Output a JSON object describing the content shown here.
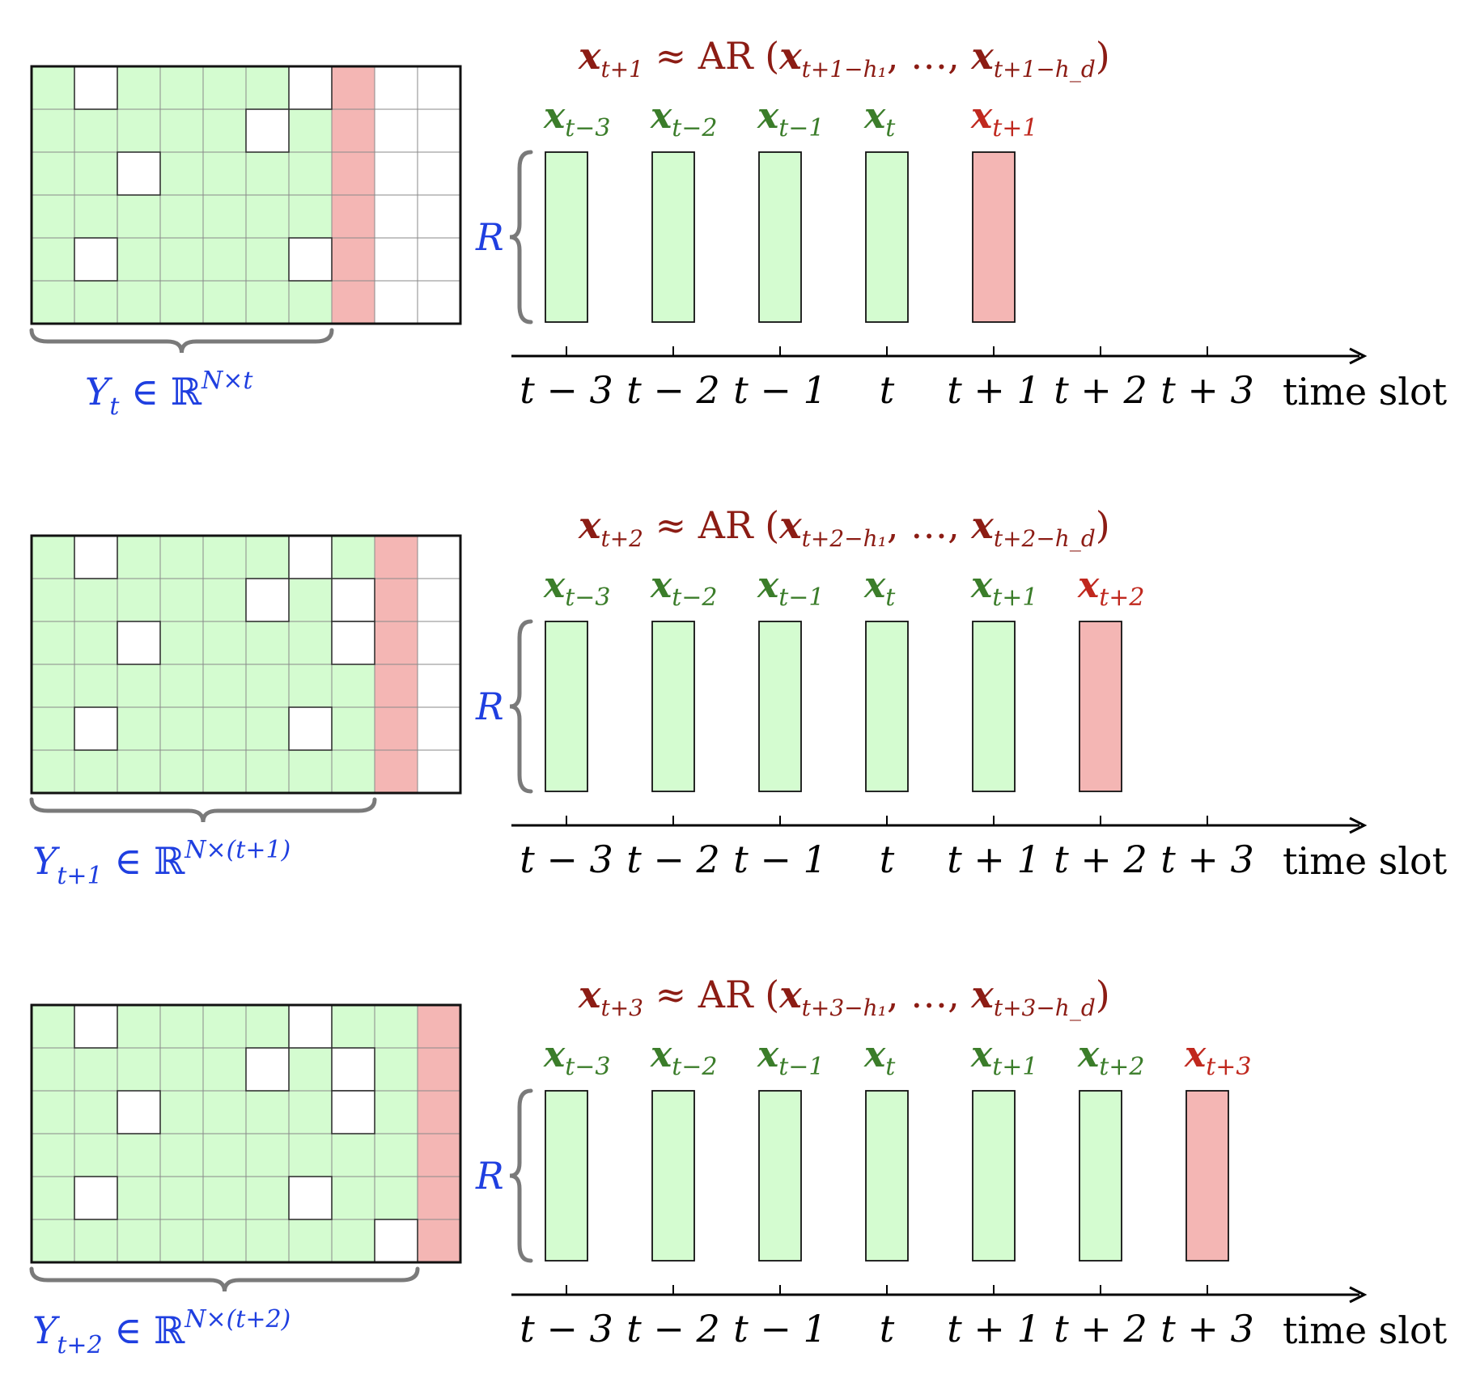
{
  "colors": {
    "observed": "#d4fcd0",
    "forecast": "#f4b6b4",
    "missing": "#ffffff",
    "grid": "#8a8a8a",
    "label_blue": "#1f3fe0",
    "label_green": "#3b7d2a",
    "label_red": "#c0281e",
    "label_darkred": "#8c1c14",
    "axis": "#000000"
  },
  "panels": [
    {
      "ar_equation": {
        "lhs": "x",
        "lhs_sub": "t+1",
        "approx": "≈",
        "op": "AR",
        "args": [
          {
            "v": "x",
            "sub": "t+1−h₁"
          },
          {
            "v": "…",
            "sub": ""
          },
          {
            "v": "x",
            "sub": "t+1−h_d"
          }
        ]
      },
      "matrix_label": {
        "sym": "Y",
        "sub": "t",
        "in": "∈",
        "space": "ℝ",
        "sup": "N×t"
      },
      "rank_label": "R",
      "observed_cols": 7,
      "forecast_col": 7,
      "missing_cells": [
        [
          0,
          1
        ],
        [
          0,
          6
        ],
        [
          1,
          5
        ],
        [
          2,
          2
        ],
        [
          4,
          1
        ],
        [
          4,
          6
        ]
      ],
      "vectors": [
        {
          "sub": "t−3",
          "state": "observed"
        },
        {
          "sub": "t−2",
          "state": "observed"
        },
        {
          "sub": "t−1",
          "state": "observed"
        },
        {
          "sub": "t",
          "state": "observed"
        },
        {
          "sub": "t+1",
          "state": "forecast"
        }
      ]
    },
    {
      "ar_equation": {
        "lhs": "x",
        "lhs_sub": "t+2",
        "approx": "≈",
        "op": "AR",
        "args": [
          {
            "v": "x",
            "sub": "t+2−h₁"
          },
          {
            "v": "…",
            "sub": ""
          },
          {
            "v": "x",
            "sub": "t+2−h_d"
          }
        ]
      },
      "matrix_label": {
        "sym": "Y",
        "sub": "t+1",
        "in": "∈",
        "space": "ℝ",
        "sup": "N×(t+1)"
      },
      "rank_label": "R",
      "observed_cols": 8,
      "forecast_col": 8,
      "missing_cells": [
        [
          0,
          1
        ],
        [
          0,
          6
        ],
        [
          1,
          5
        ],
        [
          1,
          7
        ],
        [
          2,
          2
        ],
        [
          2,
          7
        ],
        [
          4,
          1
        ],
        [
          4,
          6
        ]
      ],
      "vectors": [
        {
          "sub": "t−3",
          "state": "observed"
        },
        {
          "sub": "t−2",
          "state": "observed"
        },
        {
          "sub": "t−1",
          "state": "observed"
        },
        {
          "sub": "t",
          "state": "observed"
        },
        {
          "sub": "t+1",
          "state": "observed"
        },
        {
          "sub": "t+2",
          "state": "forecast"
        }
      ]
    },
    {
      "ar_equation": {
        "lhs": "x",
        "lhs_sub": "t+3",
        "approx": "≈",
        "op": "AR",
        "args": [
          {
            "v": "x",
            "sub": "t+3−h₁"
          },
          {
            "v": "…",
            "sub": ""
          },
          {
            "v": "x",
            "sub": "t+3−h_d"
          }
        ]
      },
      "matrix_label": {
        "sym": "Y",
        "sub": "t+2",
        "in": "∈",
        "space": "ℝ",
        "sup": "N×(t+2)"
      },
      "rank_label": "R",
      "observed_cols": 9,
      "forecast_col": 9,
      "missing_cells": [
        [
          0,
          1
        ],
        [
          0,
          6
        ],
        [
          1,
          5
        ],
        [
          1,
          7
        ],
        [
          2,
          2
        ],
        [
          2,
          7
        ],
        [
          4,
          1
        ],
        [
          4,
          6
        ],
        [
          5,
          8
        ]
      ],
      "vectors": [
        {
          "sub": "t−3",
          "state": "observed"
        },
        {
          "sub": "t−2",
          "state": "observed"
        },
        {
          "sub": "t−1",
          "state": "observed"
        },
        {
          "sub": "t",
          "state": "observed"
        },
        {
          "sub": "t+1",
          "state": "observed"
        },
        {
          "sub": "t+2",
          "state": "observed"
        },
        {
          "sub": "t+3",
          "state": "forecast"
        }
      ]
    }
  ],
  "axis": {
    "ticks": [
      "t − 3",
      "t − 2",
      "t − 1",
      "t",
      "t + 1",
      "t + 2",
      "t + 3"
    ],
    "label": "time slot"
  }
}
